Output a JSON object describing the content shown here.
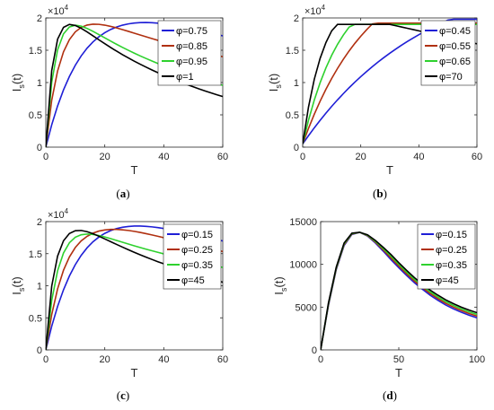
{
  "chart_data": [
    {
      "type": "line",
      "caption": "(a)",
      "xlabel": "T",
      "ylabel": "I_s(t)",
      "xlim": [
        0,
        60
      ],
      "ylim": [
        0,
        20000
      ],
      "xticks": [
        "0",
        "20",
        "40",
        "60"
      ],
      "yticks": [
        "0",
        "0.5",
        "1",
        "1.5",
        "2"
      ],
      "exponent_base": "×10",
      "exponent_power": "4",
      "legend_position": "top-right",
      "x": [
        0,
        2,
        4,
        6,
        8,
        10,
        12,
        14,
        16,
        18,
        20,
        22,
        24,
        26,
        28,
        30,
        32,
        34,
        36,
        38,
        40,
        42,
        44,
        46,
        48,
        50,
        52,
        54,
        56,
        58,
        60
      ],
      "series": [
        {
          "name": "φ=0.75",
          "color": "#1f1fd6",
          "values": [
            0,
            3452,
            6383,
            8858,
            10938,
            12678,
            14125,
            15319,
            16297,
            17088,
            17721,
            18218,
            18600,
            18883,
            19082,
            19209,
            19276,
            19291,
            19262,
            19196,
            19099,
            18975,
            18830,
            18666,
            18487,
            18296,
            18096,
            17888,
            17673,
            17455,
            17234
          ]
        },
        {
          "name": "φ=0.85",
          "color": "#b03010",
          "values": [
            0,
            7251,
            11803,
            14752,
            16652,
            17840,
            18537,
            18899,
            19033,
            19011,
            18886,
            18693,
            18458,
            18198,
            17924,
            17643,
            17361,
            17082,
            16807,
            16538,
            16276,
            16021,
            15772,
            15530,
            15294,
            15065,
            14842,
            14625,
            14413,
            14206,
            14004
          ]
        },
        {
          "name": "φ=0.95",
          "color": "#2ed12e",
          "values": [
            0,
            10051,
            15082,
            17536,
            18598,
            18872,
            18728,
            18375,
            17922,
            17426,
            16917,
            16412,
            15920,
            15445,
            14988,
            14548,
            14127,
            13722,
            13332,
            12957,
            12595,
            12246,
            11909,
            11584,
            11269,
            10964,
            10669,
            10383,
            10106,
            9837,
            9576
          ]
        },
        {
          "name": "φ=1",
          "color": "#000000",
          "values": [
            0,
            11846,
            16710,
            18544,
            19000,
            18827,
            18394,
            17837,
            17231,
            16616,
            16012,
            15425,
            14862,
            14322,
            13805,
            13310,
            12837,
            12383,
            11948,
            11529,
            11127,
            10741,
            10369,
            10011,
            9665,
            9332,
            9011,
            8700,
            8400,
            8111,
            7831
          ]
        }
      ]
    },
    {
      "type": "line",
      "caption": "(b)",
      "xlabel": "T",
      "ylabel": "I_s(t)",
      "xlim": [
        0,
        60
      ],
      "ylim": [
        0,
        20000
      ],
      "xticks": [
        "0",
        "20",
        "40",
        "60"
      ],
      "yticks": [
        "0",
        "0.5",
        "1",
        "1.5",
        "2"
      ],
      "exponent_base": "×10",
      "exponent_power": "4",
      "legend_position": "top-right",
      "x": [
        0,
        2,
        4,
        6,
        8,
        10,
        12,
        14,
        16,
        18,
        20,
        22,
        24,
        26,
        28,
        30,
        32,
        34,
        36,
        38,
        40,
        42,
        44,
        46,
        48,
        50,
        52,
        54,
        56,
        58,
        60
      ],
      "series": [
        {
          "name": "φ=0.45",
          "color": "#1f1fd6",
          "values": [
            500,
            1774,
            2991,
            4152,
            5259,
            6315,
            7323,
            8284,
            9201,
            10076,
            10910,
            11706,
            12465,
            13189,
            13880,
            14539,
            15168,
            15768,
            16340,
            16886,
            17407,
            17903,
            18377,
            18829,
            19261,
            19672,
            19800,
            19800,
            19800,
            19800,
            19800
          ]
        },
        {
          "name": "φ=0.55",
          "color": "#b03010",
          "values": [
            500,
            2900,
            5097,
            7110,
            8953,
            10641,
            12187,
            13602,
            14899,
            16086,
            17173,
            18168,
            19080,
            19200,
            19200,
            19200,
            19200,
            19200,
            19200,
            19200,
            19200,
            19200,
            19200,
            19200,
            19200,
            19200,
            19200,
            19200,
            19200,
            19200,
            19200
          ]
        },
        {
          "name": "φ=0.65",
          "color": "#2ed12e",
          "values": [
            500,
            4159,
            7292,
            9974,
            12270,
            14236,
            15918,
            17359,
            18592,
            19000,
            19000,
            19000,
            19000,
            19000,
            19000,
            19000,
            19000,
            19000,
            19000,
            19000,
            19000,
            19000,
            19000,
            19000,
            19000,
            19000,
            19000,
            19000,
            19000,
            19000,
            19000
          ]
        },
        {
          "name": "φ=70",
          "color": "#000000",
          "values": [
            500,
            6211,
            10509,
            13745,
            16182,
            18017,
            19000,
            19000,
            19000,
            19000,
            19000,
            19000,
            19000,
            19000,
            19000,
            19000,
            18800,
            18600,
            18400,
            18200,
            18000,
            17800,
            17600,
            17400,
            17200,
            17000,
            16800,
            16600,
            16400,
            16200,
            16000
          ]
        }
      ]
    },
    {
      "type": "line",
      "caption": "(c)",
      "xlabel": "T",
      "ylabel": "I_s(t)",
      "xlim": [
        0,
        60
      ],
      "ylim": [
        0,
        20000
      ],
      "xticks": [
        "0",
        "20",
        "40",
        "60"
      ],
      "yticks": [
        "0",
        "0.5",
        "1",
        "1.5",
        "2"
      ],
      "exponent_base": "×10",
      "exponent_power": "4",
      "legend_position": "top-right",
      "x": [
        0,
        2,
        4,
        6,
        8,
        10,
        12,
        14,
        16,
        18,
        20,
        22,
        24,
        26,
        28,
        30,
        32,
        34,
        36,
        38,
        40,
        42,
        44,
        46,
        48,
        50,
        52,
        54,
        56,
        58,
        60
      ],
      "series": [
        {
          "name": "φ=0.15",
          "color": "#1f1fd6",
          "values": [
            0,
            3680,
            6778,
            9369,
            11519,
            13291,
            14740,
            15914,
            16853,
            17594,
            18166,
            18596,
            18907,
            19117,
            19245,
            19304,
            19305,
            19260,
            19178,
            19065,
            18928,
            18772,
            18601,
            18418,
            18226,
            18027,
            17823,
            17615,
            17405,
            17194,
            16983
          ]
        },
        {
          "name": "φ=0.25",
          "color": "#b03010",
          "values": [
            0,
            5500,
            9520,
            12420,
            14490,
            15960,
            16990,
            17710,
            18200,
            18520,
            18700,
            18780,
            18780,
            18720,
            18620,
            18480,
            18310,
            18120,
            17920,
            17710,
            17490,
            17270,
            17050,
            16830,
            16610,
            16390,
            16170,
            15960,
            15750,
            15540,
            15340
          ]
        },
        {
          "name": "φ=0.35",
          "color": "#2ed12e",
          "values": [
            0,
            7690,
            12340,
            15110,
            16700,
            17560,
            17950,
            18060,
            18000,
            17830,
            17600,
            17340,
            17060,
            16780,
            16500,
            16230,
            15960,
            15700,
            15450,
            15210,
            14970,
            14740,
            14510,
            14290,
            14070,
            13860,
            13650,
            13450,
            13250,
            13050,
            12860
          ]
        },
        {
          "name": "φ=45",
          "color": "#000000",
          "values": [
            0,
            9930,
            14630,
            17010,
            18140,
            18580,
            18620,
            18430,
            18110,
            17720,
            17300,
            16870,
            16440,
            16020,
            15610,
            15210,
            14830,
            14460,
            14100,
            13750,
            13420,
            13090,
            12780,
            12470,
            12170,
            11880,
            11600,
            11330,
            11060,
            10800,
            10550
          ]
        }
      ]
    },
    {
      "type": "line",
      "caption": "(d)",
      "xlabel": "T",
      "ylabel": "I_s(t)",
      "xlim": [
        0,
        100
      ],
      "ylim": [
        0,
        15000
      ],
      "xticks": [
        "0",
        "50",
        "100"
      ],
      "yticks": [
        "0",
        "5000",
        "10000",
        "15000"
      ],
      "legend_position": "top-right",
      "x": [
        0,
        5,
        10,
        15,
        20,
        25,
        30,
        35,
        40,
        45,
        50,
        55,
        60,
        65,
        70,
        75,
        80,
        85,
        90,
        95,
        100
      ],
      "series": [
        {
          "name": "φ=0.15",
          "color": "#1f1fd6",
          "values": [
            0,
            5200,
            9400,
            12200,
            13500,
            13750,
            13300,
            12500,
            11550,
            10550,
            9600,
            8700,
            7850,
            7100,
            6400,
            5800,
            5250,
            4800,
            4400,
            4050,
            3750
          ]
        },
        {
          "name": "φ=0.25",
          "color": "#b03010",
          "values": [
            0,
            5300,
            9500,
            12300,
            13550,
            13750,
            13350,
            12600,
            11700,
            10750,
            9800,
            8900,
            8050,
            7300,
            6600,
            6000,
            5450,
            5000,
            4600,
            4250,
            3950
          ]
        },
        {
          "name": "φ=0.35",
          "color": "#2ed12e",
          "values": [
            0,
            5400,
            9600,
            12400,
            13600,
            13750,
            13400,
            12700,
            11850,
            10950,
            10000,
            9100,
            8250,
            7500,
            6800,
            6200,
            5650,
            5200,
            4800,
            4450,
            4150
          ]
        },
        {
          "name": "φ=45",
          "color": "#000000",
          "values": [
            0,
            5500,
            9700,
            12500,
            13650,
            13750,
            13450,
            12800,
            12000,
            11150,
            10200,
            9300,
            8450,
            7700,
            7000,
            6400,
            5850,
            5400,
            5000,
            4650,
            4350
          ]
        }
      ]
    }
  ]
}
